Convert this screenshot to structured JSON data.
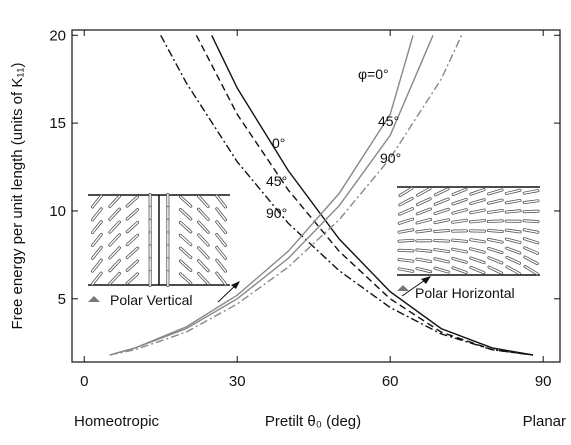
{
  "chart_data": {
    "type": "line",
    "y_label": "Free energy per unit length (units of K₁₁)",
    "x_label": "Pretilt θ₀ (deg)",
    "x_end_labels": [
      "Homeotropic",
      "Planar"
    ],
    "xlim": [
      -2.4,
      93.3
    ],
    "ylim": [
      1.4,
      20.3
    ],
    "xticks": [
      0,
      30,
      60,
      90
    ],
    "yticks": [
      5,
      10,
      15,
      20
    ],
    "series": [
      {
        "color": "#111111",
        "dash": "solid",
        "x": [
          25,
          30,
          40,
          50,
          60,
          70,
          80,
          88
        ],
        "values": [
          20,
          17,
          12.3,
          8.4,
          5.4,
          3.3,
          2.2,
          1.8
        ]
      },
      {
        "color": "#111111",
        "dash": "dashed",
        "x": [
          22,
          30,
          40,
          50,
          60,
          70,
          80,
          88
        ],
        "values": [
          20,
          15.5,
          11.2,
          7.7,
          5.0,
          3.1,
          2.1,
          1.8
        ]
      },
      {
        "color": "#111111",
        "dash": "dashdot",
        "x": [
          15,
          20,
          30,
          40,
          50,
          60,
          70,
          80,
          88
        ],
        "values": [
          20,
          17.3,
          12.8,
          9.3,
          6.6,
          4.5,
          3.0,
          2.1,
          1.8
        ]
      },
      {
        "color": "#888888",
        "dash": "solid",
        "x": [
          5,
          10,
          20,
          30,
          40,
          50,
          60,
          64.5
        ],
        "values": [
          1.8,
          2.2,
          3.4,
          5.2,
          7.7,
          11,
          15.5,
          20
        ]
      },
      {
        "color": "#888888",
        "dash": "solid",
        "x": [
          5,
          10,
          20,
          30,
          40,
          50,
          60,
          68.4
        ],
        "values": [
          1.8,
          2.2,
          3.3,
          5.0,
          7.3,
          10.3,
          14.3,
          20
        ]
      },
      {
        "color": "#888888",
        "dash": "dashdot",
        "x": [
          5,
          10,
          20,
          30,
          40,
          50,
          60,
          70,
          74
        ],
        "values": [
          1.8,
          2.1,
          3.1,
          4.7,
          6.8,
          9.5,
          13,
          17.5,
          20
        ]
      }
    ],
    "annotations": [
      "φ=0°",
      "45°",
      "90°",
      "0°",
      "45°",
      "90°",
      "Polar Vertical",
      "Polar Horizontal"
    ]
  }
}
